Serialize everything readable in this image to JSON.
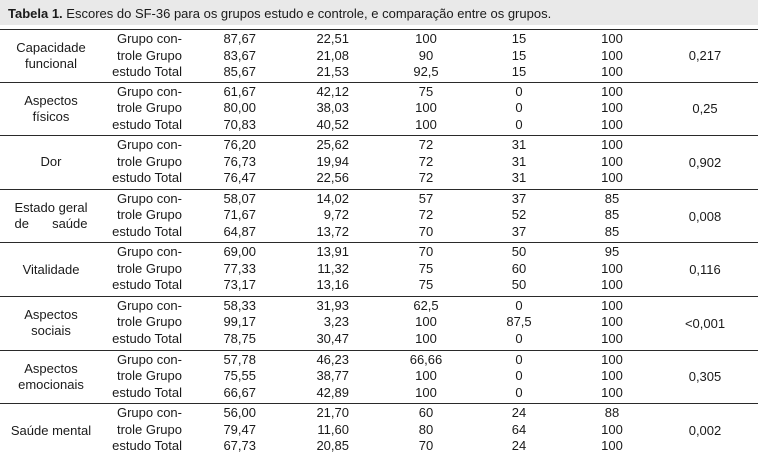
{
  "caption": {
    "label": "Tabela 1.",
    "text": " Escores do SF-36 para os grupos estudo e controle, e comparação entre os grupos."
  },
  "blocks": [
    {
      "domain": "Capacidade\nfuncional",
      "rows": [
        {
          "group": "Grupo con-",
          "mean": "87,67",
          "sd": "22,51",
          "median": "100",
          "min": "15",
          "max": "100"
        },
        {
          "group": "trole Grupo",
          "mean": "83,67",
          "sd": "21,08",
          "median": "90",
          "min": "15",
          "max": "100"
        },
        {
          "group": "estudo Total",
          "mean": "85,67",
          "sd": "21,53",
          "median": "92,5",
          "min": "15",
          "max": "100"
        }
      ],
      "p": "0,217"
    },
    {
      "domain": "Aspectos\nfísicos",
      "rows": [
        {
          "group": "Grupo con-",
          "mean": "61,67",
          "sd": "42,12",
          "median": "75",
          "min": "0",
          "max": "100"
        },
        {
          "group": "trole Grupo",
          "mean": "80,00",
          "sd": "38,03",
          "median": "100",
          "min": "0",
          "max": "100"
        },
        {
          "group": "estudo Total",
          "mean": "70,83",
          "sd": "40,52",
          "median": "100",
          "min": "0",
          "max": "100"
        }
      ],
      "p": "0,25"
    },
    {
      "domain": "Dor",
      "rows": [
        {
          "group": "Grupo con-",
          "mean": "76,20",
          "sd": "25,62",
          "median": "72",
          "min": "31",
          "max": "100"
        },
        {
          "group": "trole Grupo",
          "mean": "76,73",
          "sd": "19,94",
          "median": "72",
          "min": "31",
          "max": "100"
        },
        {
          "group": "estudo Total",
          "mean": "76,47",
          "sd": "22,56",
          "median": "72",
          "min": "31",
          "max": "100"
        }
      ],
      "p": "0,902"
    },
    {
      "domain": "Estado geral\nde saúde",
      "rows": [
        {
          "group": "Grupo con-",
          "mean": "58,07",
          "sd": "14,02",
          "median": "57",
          "min": "37",
          "max": "85"
        },
        {
          "group": "trole Grupo",
          "mean": "71,67",
          "sd": "9,72",
          "median": "72",
          "min": "52",
          "max": "85"
        },
        {
          "group": "estudo Total",
          "mean": "64,87",
          "sd": "13,72",
          "median": "70",
          "min": "37",
          "max": "85"
        }
      ],
      "p": "0,008"
    },
    {
      "domain": "Vitalidade",
      "rows": [
        {
          "group": "Grupo con-",
          "mean": "69,00",
          "sd": "13,91",
          "median": "70",
          "min": "50",
          "max": "95"
        },
        {
          "group": "trole Grupo",
          "mean": "77,33",
          "sd": "11,32",
          "median": "75",
          "min": "60",
          "max": "100"
        },
        {
          "group": "estudo Total",
          "mean": "73,17",
          "sd": "13,16",
          "median": "75",
          "min": "50",
          "max": "100"
        }
      ],
      "p": "0,116"
    },
    {
      "domain": "Aspectos\nsociais",
      "rows": [
        {
          "group": "Grupo con-",
          "mean": "58,33",
          "sd": "31,93",
          "median": "62,5",
          "min": "0",
          "max": "100"
        },
        {
          "group": "trole Grupo",
          "mean": "99,17",
          "sd": "3,23",
          "median": "100",
          "min": "87,5",
          "max": "100"
        },
        {
          "group": "estudo Total",
          "mean": "78,75",
          "sd": "30,47",
          "median": "100",
          "min": "0",
          "max": "100"
        }
      ],
      "p": "<0,001"
    },
    {
      "domain": "Aspectos\nemocionais",
      "rows": [
        {
          "group": "Grupo con-",
          "mean": "57,78",
          "sd": "46,23",
          "median": "66,66",
          "min": "0",
          "max": "100"
        },
        {
          "group": "trole Grupo",
          "mean": "75,55",
          "sd": "38,77",
          "median": "100",
          "min": "0",
          "max": "100"
        },
        {
          "group": "estudo Total",
          "mean": "66,67",
          "sd": "42,89",
          "median": "100",
          "min": "0",
          "max": "100"
        }
      ],
      "p": "0,305"
    },
    {
      "domain": "Saúde mental",
      "rows": [
        {
          "group": "Grupo con-",
          "mean": "56,00",
          "sd": "21,70",
          "median": "60",
          "min": "24",
          "max": "88"
        },
        {
          "group": "trole Grupo",
          "mean": "79,47",
          "sd": "11,60",
          "median": "80",
          "min": "64",
          "max": "100"
        },
        {
          "group": "estudo Total",
          "mean": "67,73",
          "sd": "20,85",
          "median": "70",
          "min": "24",
          "max": "100"
        }
      ],
      "p": "0,002"
    }
  ]
}
